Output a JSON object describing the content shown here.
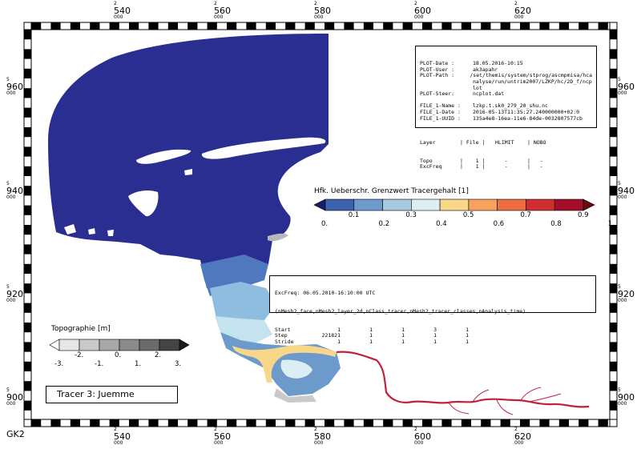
{
  "map": {
    "crs_label": "GK2",
    "x_ticks": [
      {
        "prefix": "2",
        "main": "540",
        "suffix": "000"
      },
      {
        "prefix": "2",
        "main": "560",
        "suffix": "000"
      },
      {
        "prefix": "2",
        "main": "580",
        "suffix": "000"
      },
      {
        "prefix": "2",
        "main": "600",
        "suffix": "000"
      },
      {
        "prefix": "2",
        "main": "620",
        "suffix": "000"
      }
    ],
    "y_ticks": [
      {
        "prefix": "5",
        "main": "960",
        "suffix": "000"
      },
      {
        "prefix": "5",
        "main": "940",
        "suffix": "000"
      },
      {
        "prefix": "5",
        "main": "920",
        "suffix": "000"
      },
      {
        "prefix": "5",
        "main": "900",
        "suffix": "000"
      }
    ],
    "colors": {
      "sea": "#2a2e90",
      "frame": "#000000",
      "river": "#c0203a"
    }
  },
  "plot_info": {
    "rows": [
      {
        "k": "PLOT-Date :",
        "v": "18.05.2016-10:15"
      },
      {
        "k": "PLOT-User :",
        "v": "ak3apahr"
      },
      {
        "k": "PLOT-Path :",
        "v": "/set/themis/system/stprog/ascmpmisa/hca"
      },
      {
        "k": "",
        "v": "nalyse/run/untrim2007/LZKP/hc/2D_f/ncp"
      },
      {
        "k": "",
        "v": "lot"
      },
      {
        "k": "PLOT-Steer:",
        "v": "ncplot.dat"
      },
      {
        "k": "",
        "v": ""
      },
      {
        "k": "FILE_1-Name :",
        "v": "lzkp.t.sk0_279_20_shu.nc"
      },
      {
        "k": "FILE_1-Date :",
        "v": "2016-05-13T11:35:27.240000000+02:0"
      },
      {
        "k": "FILE_1-UUID :",
        "v": "135a4e8-16ea-11e6-84de-0032807577cb"
      },
      {
        "k": "",
        "v": ""
      }
    ],
    "header": [
      "Layer",
      "| File |",
      "HLIMIT",
      "| NOBO"
    ],
    "table": [
      [
        "Topo",
        "|    1 |",
        "   -  ",
        "|   -"
      ],
      [
        "ExcFreq",
        "|    1 |",
        "   -  ",
        "|   -"
      ]
    ]
  },
  "excfreq_info": {
    "title": "ExcFreq: 06.05.2010-16:10:00 UTC",
    "dims": "(nMesh2_face,nMesh2_layer_2d,nClass_tracer,nMesh2_tracer_classes,nAnalysis_time)",
    "rows": [
      [
        "Start",
        "1",
        "1",
        "1",
        "3",
        "1"
      ],
      [
        "Step",
        "221821",
        "1",
        "1",
        "1",
        "1"
      ],
      [
        "Stride",
        "1",
        "1",
        "1",
        "1",
        "1"
      ]
    ]
  },
  "legend_tracer": {
    "title": "Hfk. Ueberschr. Grenzwert Tracergehalt [1]",
    "colors": [
      "#1a1c6e",
      "#3d62b0",
      "#6c9acb",
      "#a4cbe0",
      "#dbeef3",
      "#f8d78a",
      "#f6a45c",
      "#ee6e44",
      "#cf2e2e",
      "#a30f28",
      "#660a14"
    ],
    "labels_top": [
      "0.1",
      "0.3",
      "0.5",
      "0.7",
      "0.9"
    ],
    "labels_bottom": [
      "0.",
      "0.2",
      "0.4",
      "0.6",
      "0.8",
      "1."
    ]
  },
  "legend_topo": {
    "title": "Topographie [m]",
    "colors": [
      "#ffffff",
      "#e6e6e6",
      "#c9c9c9",
      "#a8a8a8",
      "#8a8a8a",
      "#6a6a6a",
      "#444444",
      "#1a1a1a"
    ],
    "labels_bottom": [
      "-3.",
      "-2.",
      "-1.",
      "0.",
      "1.",
      "2.",
      "3."
    ]
  },
  "tracer_label": "Tracer 3: Juemme"
}
